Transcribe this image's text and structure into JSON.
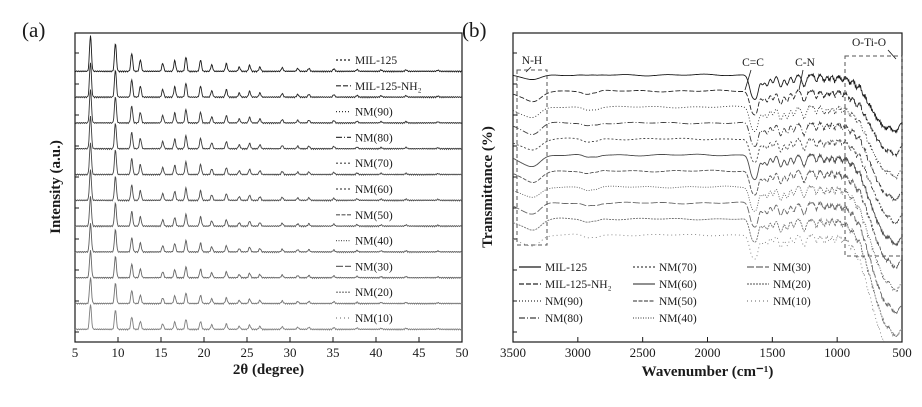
{
  "figure": {
    "background": "#ffffff",
    "ink_color": "#1a1a1a"
  },
  "chart_data": [
    {
      "id": "xrd-patterns",
      "type": "line",
      "panel_label": "(a)",
      "title": "",
      "xlabel": "2θ (degree)",
      "ylabel": "Intensity (a.u.)",
      "xlim": [
        5,
        50
      ],
      "xticks": [
        5,
        10,
        15,
        20,
        25,
        30,
        35,
        40,
        45,
        50
      ],
      "grid": false,
      "presentation": "stacked offset XRD traces, top to bottom in series order, intensity in arbitrary units",
      "series": [
        "MIL-125",
        "MIL-125-NH₂",
        "NM(90)",
        "NM(80)",
        "NM(70)",
        "NM(60)",
        "NM(50)",
        "NM(40)",
        "NM(30)",
        "NM(20)",
        "NM(10)"
      ],
      "peak_positions_2theta": [
        6.8,
        9.7,
        11.6,
        12.6,
        15.2,
        16.6,
        17.9,
        19.6,
        20.9,
        22.6,
        24.1,
        25.3,
        26.5,
        29.1,
        30.9,
        32.2,
        35.1,
        37.8,
        40.6,
        43.5,
        47.2
      ],
      "peak_relative_heights": [
        1.0,
        0.78,
        0.5,
        0.32,
        0.22,
        0.3,
        0.4,
        0.32,
        0.18,
        0.22,
        0.12,
        0.17,
        0.12,
        0.1,
        0.08,
        0.08,
        0.07,
        0.05,
        0.04,
        0.04,
        0.03
      ]
    },
    {
      "id": "ftir-spectra",
      "type": "line",
      "panel_label": "(b)",
      "title": "",
      "xlabel": "Wavenumber (cm⁻¹)",
      "ylabel": "Transmittance (%)",
      "x_axis_reversed": true,
      "xlim": [
        3500,
        500
      ],
      "xticks": [
        3500,
        3000,
        2500,
        2000,
        1500,
        1000,
        500
      ],
      "grid": false,
      "presentation": "stacked offset FTIR transmittance curves, top to bottom in series order",
      "series": [
        "MIL-125",
        "MIL-125-NH₂",
        "NM(90)",
        "NM(80)",
        "NM(70)",
        "NM(60)",
        "NM(50)",
        "NM(40)",
        "NM(30)",
        "NM(20)",
        "NM(10)"
      ],
      "annotations": [
        {
          "label": "N-H",
          "wavenumber": 3380
        },
        {
          "label": "C=C",
          "wavenumber": 1650
        },
        {
          "label": "C-N",
          "wavenumber": 1250
        },
        {
          "label": "O-Ti-O",
          "wavenumber": 680
        }
      ],
      "absorption_bands_cm1": [
        3400,
        3330,
        2925,
        2855,
        1655,
        1620,
        1540,
        1495,
        1435,
        1385,
        1255,
        1160,
        1100,
        1018,
        960,
        900,
        850,
        800,
        765,
        730,
        695,
        655,
        620,
        575,
        540
      ],
      "legend_columns": [
        [
          "MIL-125",
          "MIL-125-NH₂",
          "NM(90)",
          "NM(80)"
        ],
        [
          "NM(70)",
          "NM(60)",
          "NM(50)",
          "NM(40)"
        ],
        [
          "NM(30)",
          "NM(20)",
          "NM(10)"
        ]
      ]
    }
  ]
}
